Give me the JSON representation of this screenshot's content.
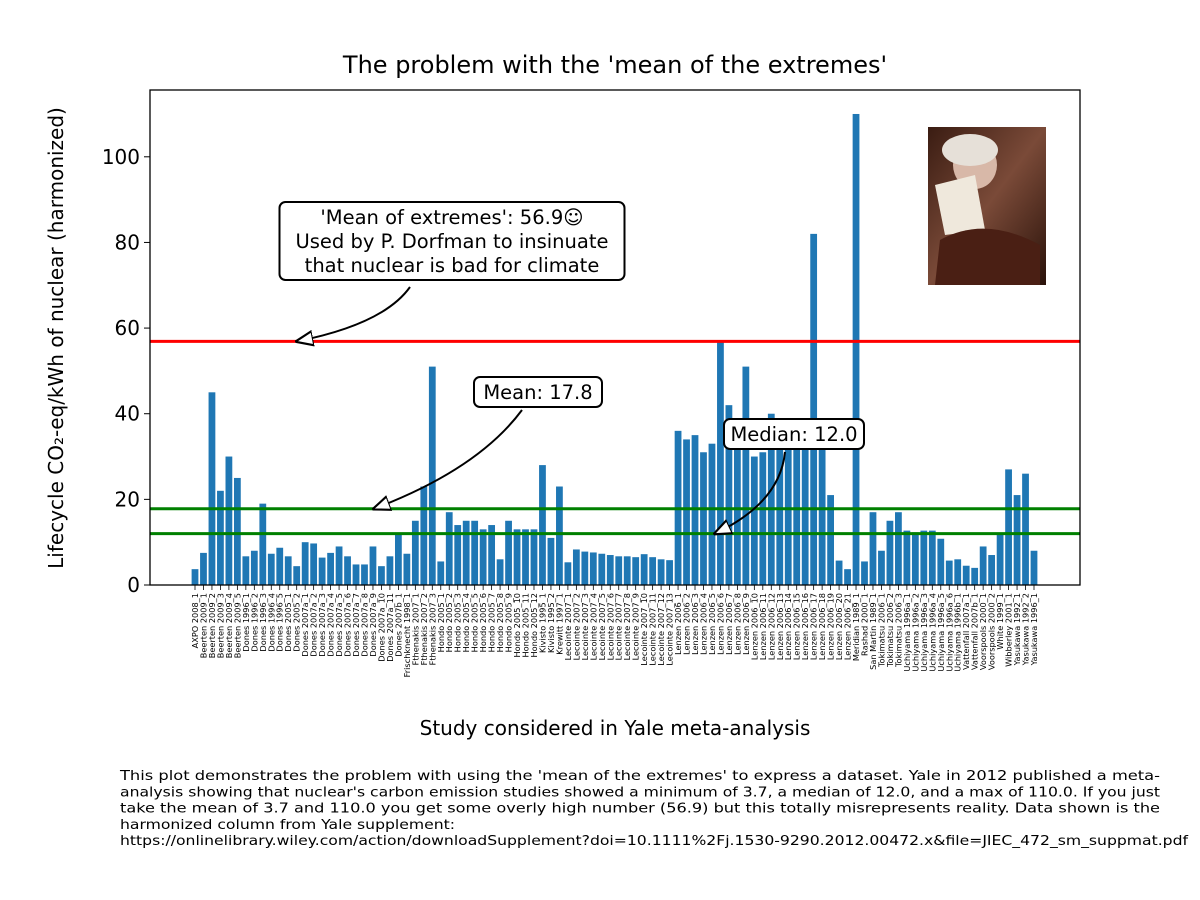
{
  "chart_data": {
    "type": "bar",
    "title": "The problem with the 'mean of the extremes'",
    "x_label": "Study considered in Yale meta-analysis",
    "y_label": "Lifecycle CO₂-eq/kWh of nuclear (harmonized)",
    "color": "#1f77b4",
    "categories": [
      "AXPO 2008_1",
      "Beerten 2009_1",
      "Beerten 2009_2",
      "Beerten 2009_3",
      "Beerten 2009_4",
      "Beerten 2009_5",
      "Dones 1996_1",
      "Dones 1996_2",
      "Dones 1996_3",
      "Dones 1996_4",
      "Dones 1996_5",
      "Dones 2005_1",
      "Dones 2005_2",
      "Dones 2007a_1",
      "Dones 2007a_2",
      "Dones 2007a_3",
      "Dones 2007a_4",
      "Dones 2007a_5",
      "Dones 2007a_6",
      "Dones 2007a_7",
      "Dones 2007a_8",
      "Dones 2007a_9",
      "Dones 2007a_10",
      "Dones 2007a_11",
      "Dones 2007b_1",
      "Frischknecht 1998_1",
      "Fthenakis 2007_1",
      "Fthenakis 2007_2",
      "Fthenakis 2007_3",
      "Hondo 2005_1",
      "Hondo 2005_2",
      "Hondo 2005_3",
      "Hondo 2005_4",
      "Hondo 2005_5",
      "Hondo 2005_6",
      "Hondo 2005_7",
      "Hondo 2005_8",
      "Hondo 2005_9",
      "Hondo 2005_10",
      "Hondo 2005_11",
      "Hondo 2005_12",
      "Kivisto 1995_1",
      "Kivisto 1995_2",
      "Krewitt 1997_1",
      "Lecointe 2007_1",
      "Lecointe 2007_2",
      "Lecointe 2007_3",
      "Lecointe 2007_4",
      "Lecointe 2007_5",
      "Lecointe 2007_6",
      "Lecointe 2007_7",
      "Lecointe 2007_8",
      "Lecointe 2007_9",
      "Lecointe 2007_10",
      "Lecointe 2007_11",
      "Lecointe 2007_12",
      "Lecointe 2007_13",
      "Lenzen 2006_1",
      "Lenzen 2006_2",
      "Lenzen 2006_3",
      "Lenzen 2006_4",
      "Lenzen 2006_5",
      "Lenzen 2006_6",
      "Lenzen 2006_7",
      "Lenzen 2006_8",
      "Lenzen 2006_9",
      "Lenzen 2006_10",
      "Lenzen 2006_11",
      "Lenzen 2006_12",
      "Lenzen 2006_13",
      "Lenzen 2006_14",
      "Lenzen 2006_15",
      "Lenzen 2006_16",
      "Lenzen 2006_17",
      "Lenzen 2006_18",
      "Lenzen 2006_19",
      "Lenzen 2006_20",
      "Lenzen 2006_21",
      "Meridian 1989_1",
      "Rashad 2000_1",
      "San Martin 1989_1",
      "Tokimatsu 2006_1",
      "Tokimatsu 2006_2",
      "Tokimatsu 2006_3",
      "Uchiyama 1996a_1",
      "Uchiyama 1996a_2",
      "Uchiyama 1996a_3",
      "Uchiyama 1996a_4",
      "Uchiyama 1996a_5",
      "Uchiyama 1996a_6",
      "Uchiyama 1996b_1",
      "Vattenfall 2007a_1",
      "Vattenfall 2007b_1",
      "Voorspools 2000_1",
      "Voorspools 2000_2",
      "White 1999_1",
      "Wibberley 2001_1",
      "Yasukawa 1992_1",
      "Yasukawa 1992_2",
      "Yasukawa 1996_1"
    ],
    "values": [
      3.7,
      7.5,
      45,
      22,
      30,
      25,
      6.7,
      8,
      19,
      7.3,
      8.7,
      6.7,
      4.4,
      10,
      9.7,
      6.4,
      7.5,
      9,
      6.7,
      4.8,
      4.8,
      9,
      4.4,
      6.7,
      12,
      7.3,
      15,
      23,
      51,
      5.5,
      17,
      14,
      15,
      15,
      13,
      14,
      6,
      15,
      13,
      13,
      13,
      28,
      11,
      23,
      5.3,
      8.3,
      7.8,
      7.6,
      7.3,
      7,
      6.7,
      6.7,
      6.5,
      7.2,
      6.5,
      6,
      5.8,
      36,
      34,
      35,
      31,
      33,
      57,
      42,
      32,
      51,
      30,
      31,
      40,
      33,
      34,
      33,
      35,
      82,
      33,
      21,
      5.7,
      3.7,
      110,
      5.5,
      17,
      8,
      15,
      17,
      12.7,
      12.3,
      12.7,
      12.7,
      10.8,
      5.7,
      6,
      4.5,
      4,
      9,
      7,
      12,
      27,
      21,
      26,
      8
    ],
    "ylim": [
      0,
      115.6
    ],
    "yticks": [
      0,
      20,
      40,
      60,
      80,
      100
    ],
    "reference_lines": [
      {
        "value": 56.9,
        "color": "#ff0000"
      },
      {
        "value": 17.8,
        "color": "#008000"
      },
      {
        "value": 12.0,
        "color": "#008000"
      }
    ],
    "annotations": [
      {
        "lines": [
          "'Mean of extremes': 56.9☺",
          "Used by P. Dorfman to insinuate",
          "that nuclear is bad for climate"
        ]
      },
      {
        "lines": [
          "Mean: 17.8"
        ]
      },
      {
        "lines": [
          "Median: 12.0"
        ]
      }
    ],
    "footnote": [
      "This plot demonstrates the problem with using the 'mean  of the extremes' to express a dataset. Yale in 2012 published a meta-",
      "analysis showing that nuclear's carbon emission studies showed a minimum of 3.7, a median of 12.0, and a max of 110.0. If you just",
      "take the mean of 3.7  and 110.0 you get some overly high  number (56.9) but this totally misrepresents reality.  Data shown is the",
      "harmonized column from Yale supplement:",
      "https://onlinelibrary.wiley.com/action/downloadSupplement?doi=10.1111%2Fj.1530-9290.2012.00472.x&file=JIEC_472_sm_suppmat.pdf"
    ]
  }
}
